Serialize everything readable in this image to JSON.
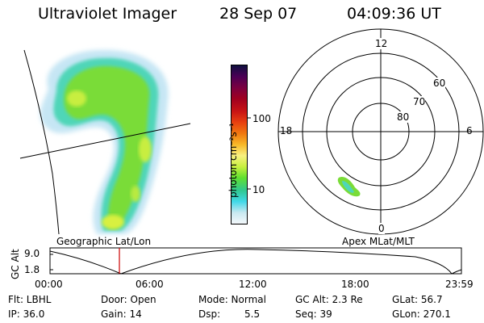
{
  "header": {
    "instrument": "Ultraviolet Imager",
    "date": "28 Sep 07",
    "time": "04:09:36 UT"
  },
  "colorbar": {
    "label": "photon cm⁻²s⁻¹",
    "ticks": [
      "100",
      "10"
    ],
    "colors": [
      "#101040",
      "#4b0055",
      "#7a0040",
      "#a00020",
      "#c81414",
      "#e84010",
      "#f07810",
      "#f8b828",
      "#f8f080",
      "#c8f040",
      "#60e030",
      "#30c890",
      "#40d8e8",
      "#c8e8f0",
      "#f4f8fb"
    ]
  },
  "left_panel": {
    "caption": "Geographic Lat/Lon"
  },
  "right_panel": {
    "caption": "Apex  MLat/MLT",
    "mlt_labels": {
      "top": "12",
      "left": "18",
      "right": "6",
      "bottom": "0"
    },
    "lat_labels": [
      "60",
      "70",
      "80"
    ]
  },
  "altitude_plot": {
    "ylabel": "GC Alt",
    "yticks": [
      "9.0",
      "1.8"
    ],
    "xticks": [
      "00:00",
      "06:00",
      "12:00",
      "18:00",
      "23:59"
    ],
    "marker_color": "#cc0000"
  },
  "info": {
    "flt": "Flt: LBHL",
    "ip": "IP: 36.0",
    "door": "Door: Open",
    "gain": "Gain: 14",
    "mode": "Mode: Normal",
    "dsp_label": "Dsp:",
    "dsp_value": "5.5",
    "gcalt": "GC Alt: 2.3 Re",
    "seq": "Seq: 39",
    "glat": "GLat:  56.7",
    "glon": "GLon: 270.1"
  }
}
